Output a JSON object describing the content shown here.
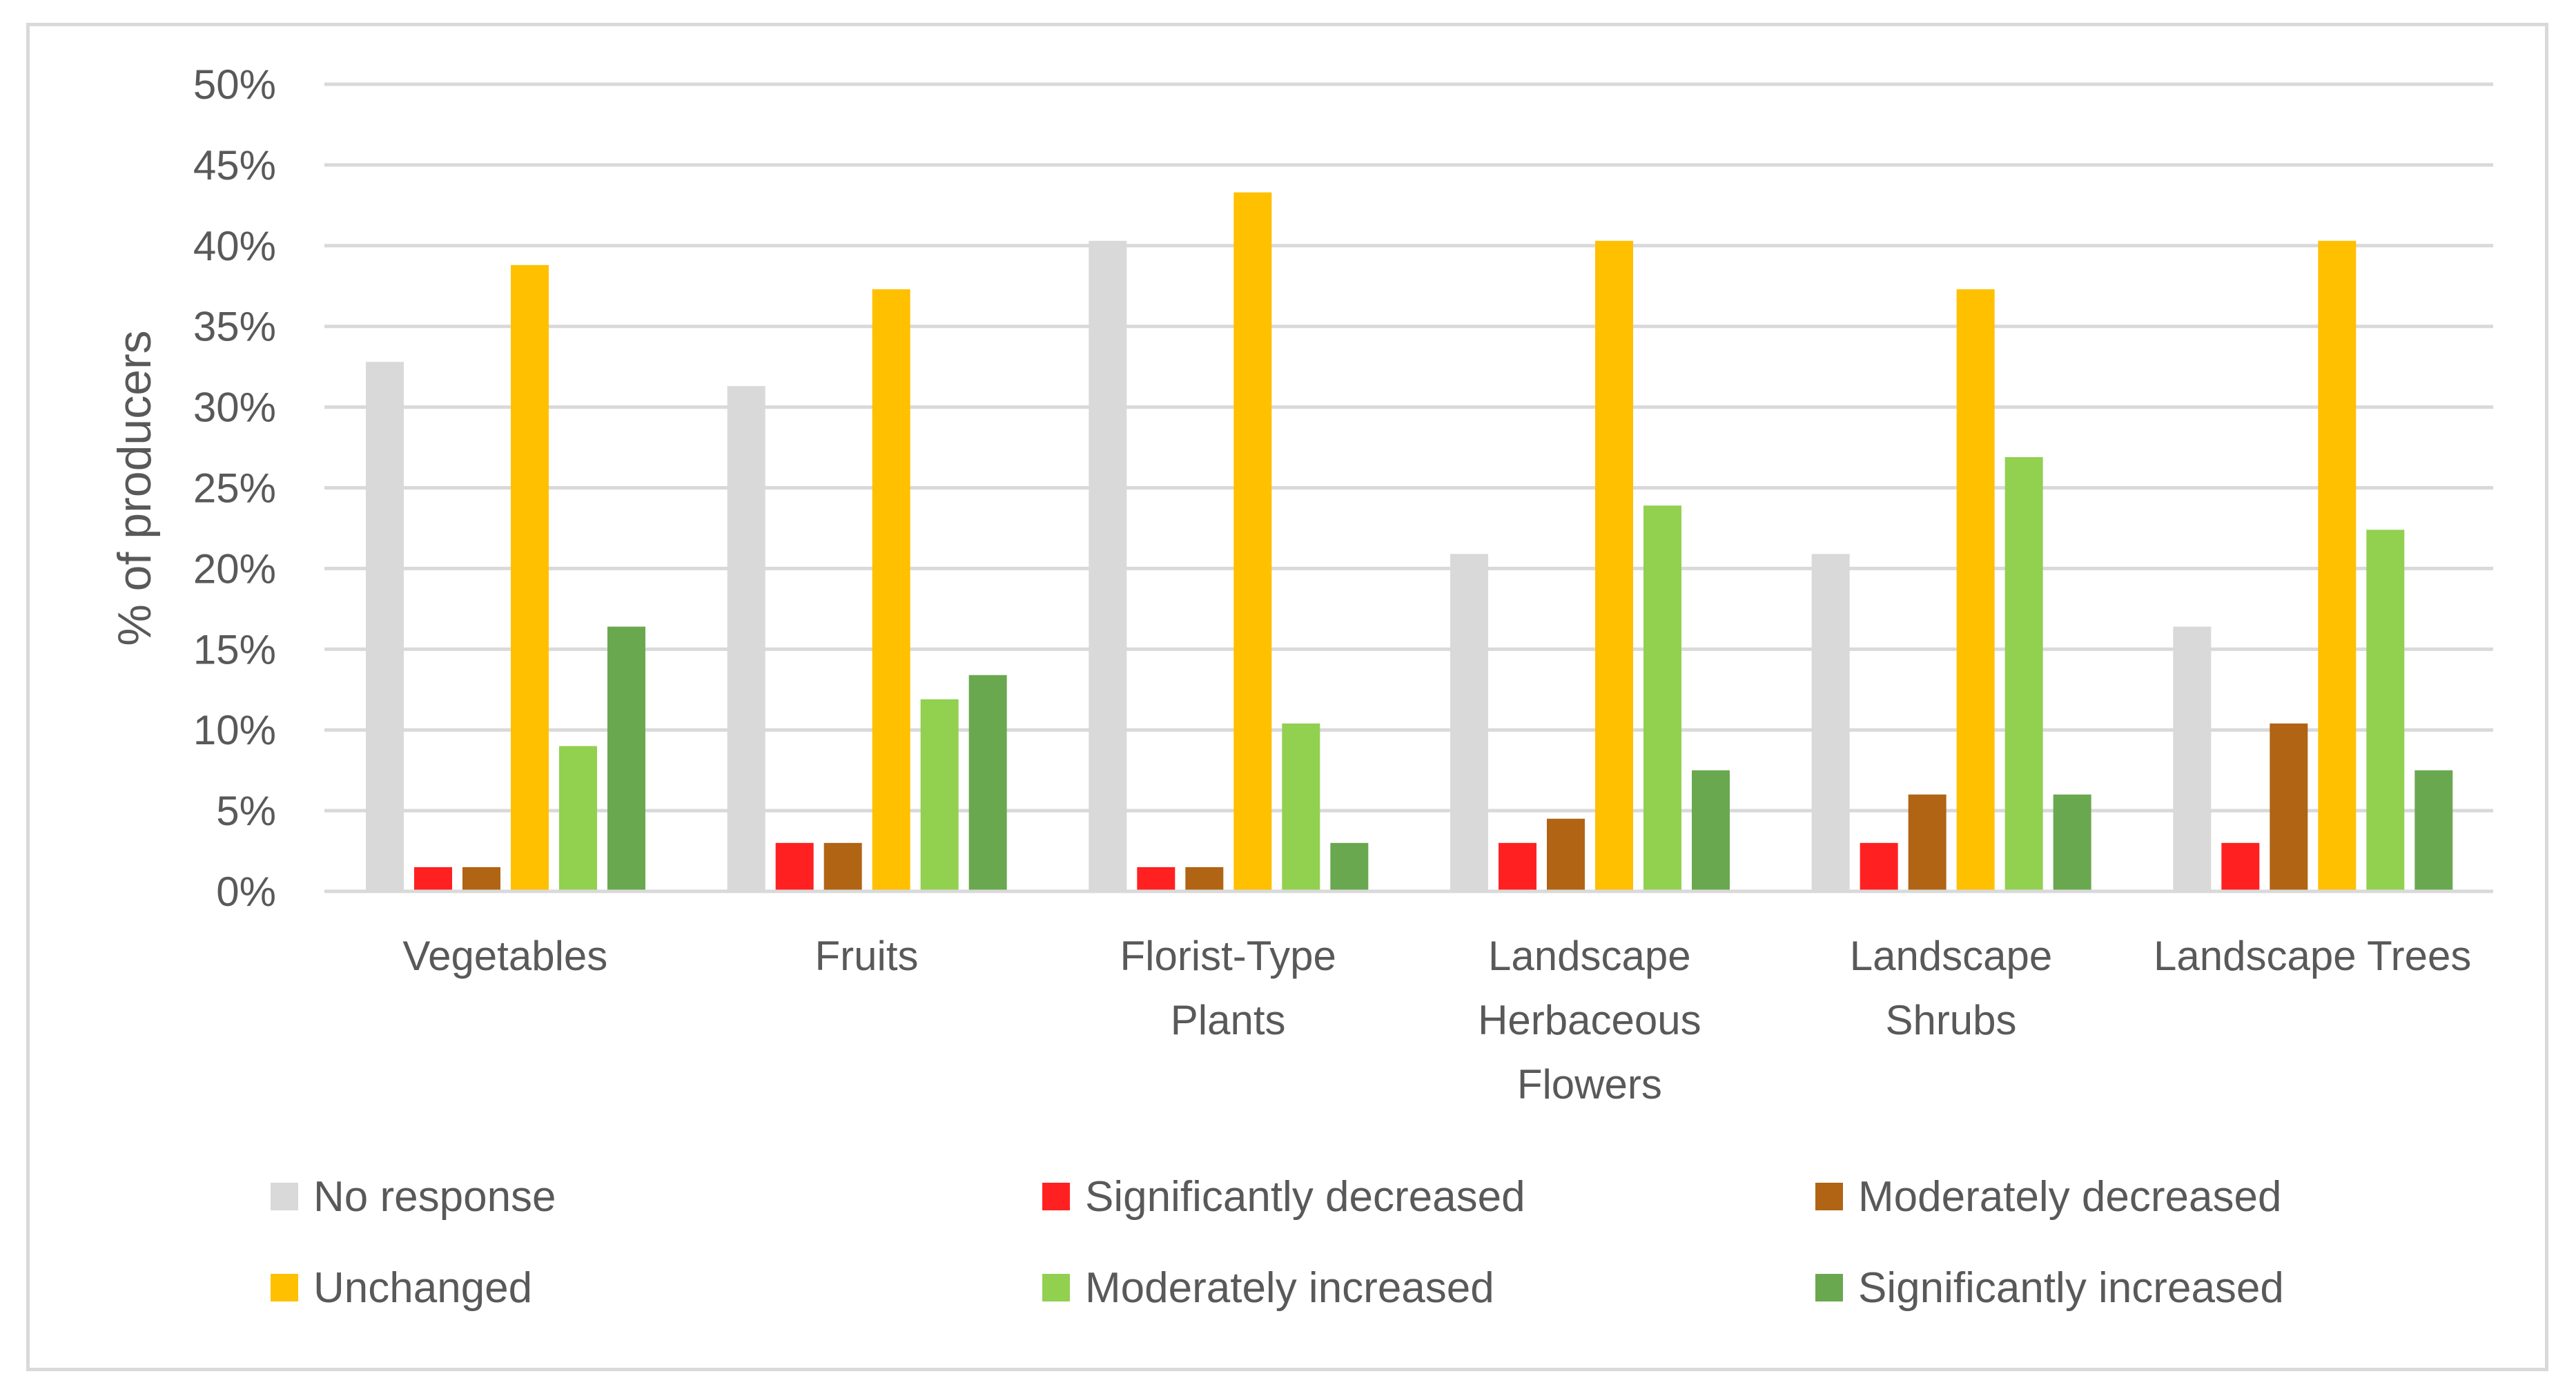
{
  "chart_data": {
    "type": "bar",
    "title": "",
    "xlabel": "",
    "ylabel": "% of producers",
    "ylim": [
      0,
      50
    ],
    "ytick_step": 5,
    "ytick_suffix": "%",
    "grid": true,
    "legend_position": "bottom",
    "categories": [
      [
        "Vegetables"
      ],
      [
        "Fruits"
      ],
      [
        "Florist-Type",
        "Plants"
      ],
      [
        "Landscape",
        "Herbaceous",
        "Flowers"
      ],
      [
        "Landscape",
        "Shrubs"
      ],
      [
        "Landscape Trees"
      ]
    ],
    "series": [
      {
        "name": "No response",
        "color": "#d9d9d9",
        "values": [
          32.8,
          31.3,
          40.3,
          20.9,
          20.9,
          16.4
        ]
      },
      {
        "name": "Significantly decreased",
        "color": "#ff2121",
        "values": [
          1.5,
          3.0,
          1.5,
          3.0,
          3.0,
          3.0
        ]
      },
      {
        "name": "Moderately decreased",
        "color": "#b06414",
        "values": [
          1.5,
          3.0,
          1.5,
          4.5,
          6.0,
          10.4
        ]
      },
      {
        "name": "Unchanged",
        "color": "#ffc000",
        "values": [
          38.8,
          37.3,
          43.3,
          40.3,
          37.3,
          40.3
        ]
      },
      {
        "name": "Moderately increased",
        "color": "#92d050",
        "values": [
          9.0,
          11.9,
          10.4,
          23.9,
          26.9,
          22.4
        ]
      },
      {
        "name": "Significantly increased",
        "color": "#6aa84f",
        "values": [
          16.4,
          13.4,
          3.0,
          7.5,
          6.0,
          7.5
        ]
      }
    ]
  }
}
